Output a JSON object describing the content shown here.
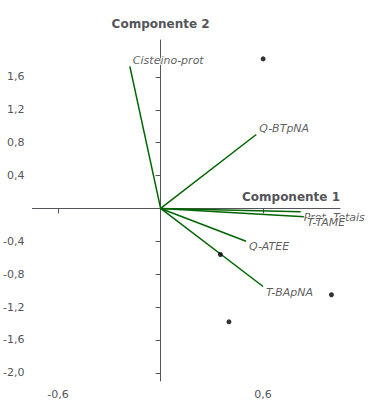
{
  "chart_data": {
    "type": "biplot",
    "x_label": "Componente 1",
    "y_label": "Componente 2",
    "xlim": [
      -0.75,
      1.05
    ],
    "ylim": [
      -2.1,
      2.05
    ],
    "xticks": [
      {
        "value": -0.6,
        "label": "-0,6"
      },
      {
        "value": 0.6,
        "label": "0,6"
      }
    ],
    "yticks": [
      {
        "value": -2.0,
        "label": "-2,0"
      },
      {
        "value": -1.6,
        "label": "-1,6"
      },
      {
        "value": -1.2,
        "label": "-1,2"
      },
      {
        "value": -0.8,
        "label": "-0,8"
      },
      {
        "value": -0.4,
        "label": "-0,4"
      },
      {
        "value": 0.4,
        "label": "0,4"
      },
      {
        "value": 0.8,
        "label": "0,8"
      },
      {
        "value": 1.2,
        "label": "1,2"
      },
      {
        "value": 1.6,
        "label": "1,6"
      }
    ],
    "series": [
      {
        "type": "vector",
        "color": "#006400",
        "labels": [
          "Cisteino-prot",
          "Q-BTpNA",
          "Prot. Totais",
          "T-TAME",
          "Q-ATEE",
          "T-BApNA"
        ],
        "x": [
          -0.18,
          0.56,
          0.82,
          0.84,
          0.5,
          0.6
        ],
        "y": [
          1.73,
          0.9,
          -0.04,
          -0.1,
          -0.4,
          -0.95
        ]
      },
      {
        "type": "scatter",
        "color": "#000000",
        "x": [
          0.6,
          0.35,
          0.4,
          1.0
        ],
        "y": [
          1.82,
          -0.56,
          -1.38,
          -1.05
        ]
      }
    ]
  }
}
